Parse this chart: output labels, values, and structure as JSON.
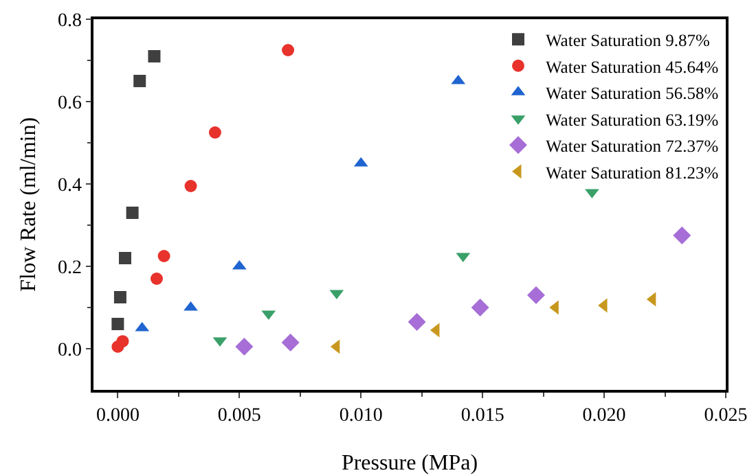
{
  "chart_data": {
    "type": "scatter",
    "xlabel": "Pressure (MPa)",
    "ylabel": "Flow Rate (ml/min)",
    "xlim": [
      -0.001,
      0.025
    ],
    "xticks": [
      {
        "value": 0,
        "label": "0.000"
      },
      {
        "value": 0.005,
        "label": "0.005"
      },
      {
        "value": 0.01,
        "label": "0.010"
      },
      {
        "value": 0.015,
        "label": "0.015"
      },
      {
        "value": 0.02,
        "label": "0.020"
      },
      {
        "value": 0.025,
        "label": "0.025"
      }
    ],
    "ylim": [
      -0.1,
      0.8
    ],
    "yticks": [
      {
        "value": 0,
        "label": "0.0"
      },
      {
        "value": 0.2,
        "label": "0.2"
      },
      {
        "value": 0.4,
        "label": "0.4"
      },
      {
        "value": 0.6,
        "label": "0.6"
      },
      {
        "value": 0.8,
        "label": "0.8"
      }
    ],
    "grid": false,
    "legend": "top right",
    "series": [
      {
        "name": "Water Saturation 9.87%",
        "color": "#3f3f3f",
        "marker": "square",
        "x": [
          0,
          0.0001,
          0.0003,
          0.0006,
          0.0009,
          0.0015
        ],
        "values": [
          0.06,
          0.125,
          0.22,
          0.33,
          0.65,
          0.71
        ]
      },
      {
        "name": "Water Saturation 45.64%",
        "color": "#e8322c",
        "marker": "circle",
        "x": [
          0,
          0.0002,
          0.0016,
          0.0019,
          0.003,
          0.004,
          0.007
        ],
        "values": [
          0.005,
          0.018,
          0.17,
          0.225,
          0.395,
          0.525,
          0.725
        ]
      },
      {
        "name": "Water Saturation 56.58%",
        "color": "#1f64d0",
        "marker": "triangle",
        "x": [
          0.001,
          0.003,
          0.005,
          0.01,
          0.014
        ],
        "values": [
          0.05,
          0.1,
          0.2,
          0.45,
          0.65
        ]
      },
      {
        "name": "Water Saturation 63.19%",
        "color": "#3aa06a",
        "marker": "triangle-down",
        "x": [
          0.0042,
          0.0062,
          0.009,
          0.0142,
          0.0195
        ],
        "values": [
          0.02,
          0.085,
          0.135,
          0.225,
          0.38
        ]
      },
      {
        "name": "Water Saturation 72.37%",
        "color": "#a66ed6",
        "marker": "diamond",
        "x": [
          0.0052,
          0.0071,
          0.0123,
          0.0149,
          0.0172,
          0.0232
        ],
        "values": [
          0.005,
          0.015,
          0.065,
          0.1,
          0.13,
          0.275
        ]
      },
      {
        "name": "Water Saturation 81.23%",
        "color": "#c8981e",
        "marker": "triangle-left",
        "x": [
          0.009,
          0.0131,
          0.018,
          0.02,
          0.022
        ],
        "values": [
          0.005,
          0.045,
          0.1,
          0.105,
          0.12
        ]
      }
    ]
  }
}
